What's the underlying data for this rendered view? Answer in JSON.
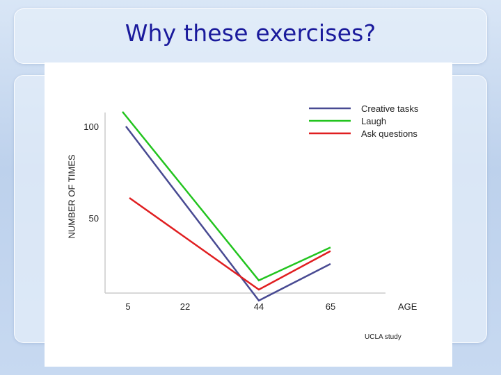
{
  "slide": {
    "title": "Why these exercises?"
  },
  "chart_data": {
    "type": "line",
    "x": [
      5,
      22,
      44,
      65
    ],
    "xlabel": "AGE",
    "ylabel": "NUMBER OF TIMES",
    "yticks": [
      50,
      100
    ],
    "ylim": [
      0,
      108
    ],
    "grid": false,
    "legend_position": "top-right",
    "series": [
      {
        "name": "Creative tasks",
        "color": "#484a92",
        "values": [
          100,
          null,
          5,
          25
        ]
      },
      {
        "name": "Laugh",
        "color": "#22c41e",
        "values": [
          108,
          null,
          16,
          34
        ]
      },
      {
        "name": "Ask questions",
        "color": "#e01e20",
        "values": [
          61,
          null,
          11,
          32
        ]
      }
    ],
    "source_note": "UCLA study"
  }
}
